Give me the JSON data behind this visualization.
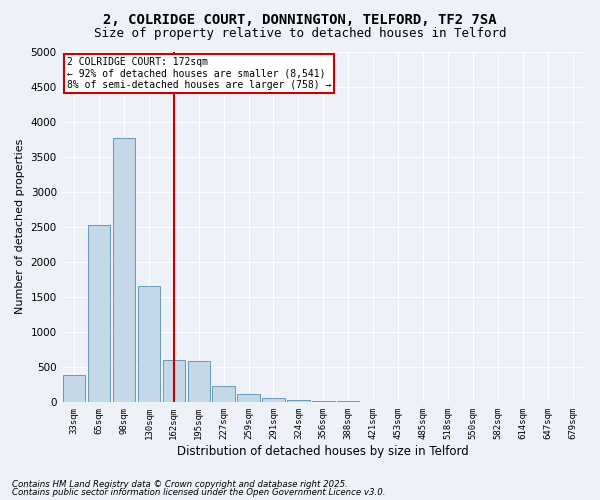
{
  "title1": "2, COLRIDGE COURT, DONNINGTON, TELFORD, TF2 7SA",
  "title2": "Size of property relative to detached houses in Telford",
  "xlabel": "Distribution of detached houses by size in Telford",
  "ylabel": "Number of detached properties",
  "categories": [
    "33sqm",
    "65sqm",
    "98sqm",
    "130sqm",
    "162sqm",
    "195sqm",
    "227sqm",
    "259sqm",
    "291sqm",
    "324sqm",
    "356sqm",
    "388sqm",
    "421sqm",
    "453sqm",
    "485sqm",
    "518sqm",
    "550sqm",
    "582sqm",
    "614sqm",
    "647sqm",
    "679sqm"
  ],
  "values": [
    380,
    2530,
    3760,
    1650,
    600,
    580,
    230,
    110,
    50,
    25,
    10,
    5,
    3,
    2,
    1,
    1,
    0,
    0,
    0,
    0,
    0
  ],
  "bar_color": "#c5d8e8",
  "bar_edge_color": "#6699bb",
  "vline_x_index": 4,
  "vline_color": "#cc0000",
  "annotation_text": "2 COLRIDGE COURT: 172sqm\n← 92% of detached houses are smaller (8,541)\n8% of semi-detached houses are larger (758) →",
  "annotation_box_color": "#ffffff",
  "annotation_box_edge_color": "#cc0000",
  "ylim": [
    0,
    5000
  ],
  "yticks": [
    0,
    500,
    1000,
    1500,
    2000,
    2500,
    3000,
    3500,
    4000,
    4500,
    5000
  ],
  "footnote1": "Contains HM Land Registry data © Crown copyright and database right 2025.",
  "footnote2": "Contains public sector information licensed under the Open Government Licence v3.0.",
  "bg_color": "#eef2f8",
  "grid_color": "#ffffff",
  "title_fontsize": 10,
  "subtitle_fontsize": 9
}
